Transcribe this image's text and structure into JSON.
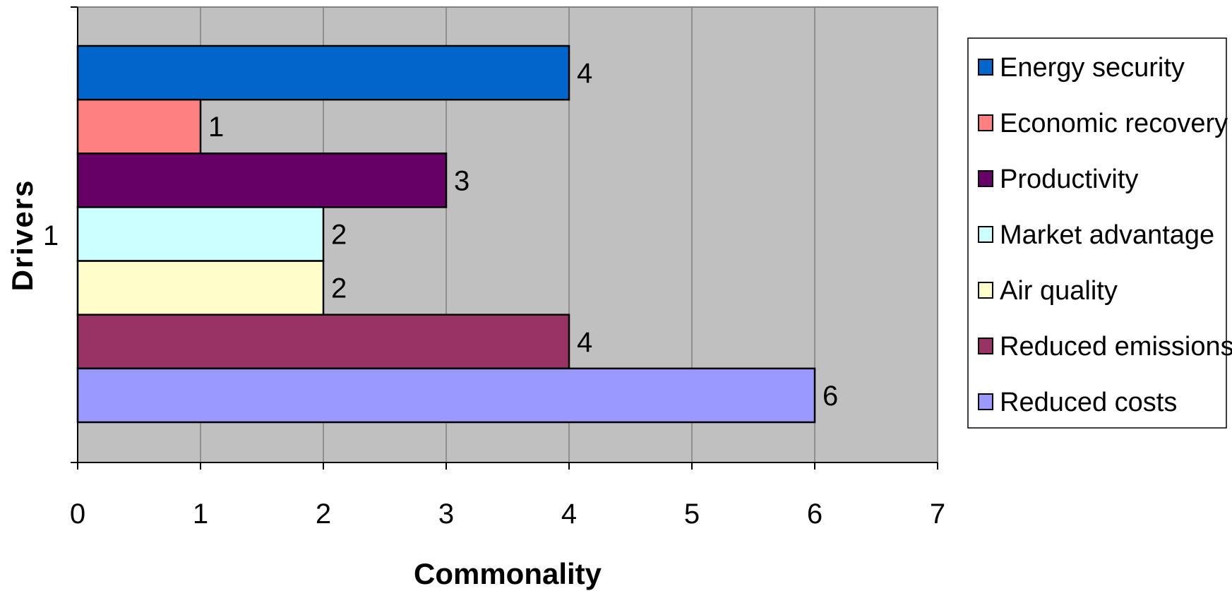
{
  "chart_data": {
    "type": "bar",
    "orientation": "horizontal",
    "categories": [
      "1"
    ],
    "series": [
      {
        "name": "Energy security",
        "values": [
          4
        ],
        "color": "#0066CC"
      },
      {
        "name": "Economic recovery",
        "values": [
          1
        ],
        "color": "#FF8080"
      },
      {
        "name": "Productivity",
        "values": [
          3
        ],
        "color": "#660066"
      },
      {
        "name": "Market advantage",
        "values": [
          2
        ],
        "color": "#CCFFFF"
      },
      {
        "name": "Air quality",
        "values": [
          2
        ],
        "color": "#FFFFCC"
      },
      {
        "name": "Reduced emissions",
        "values": [
          4
        ],
        "color": "#993366"
      },
      {
        "name": "Reduced costs",
        "values": [
          6
        ],
        "color": "#9999FF"
      }
    ],
    "xlabel": "Commonality",
    "ylabel": "Drivers",
    "xlim": [
      0,
      7
    ],
    "xticks": [
      "0",
      "1",
      "2",
      "3",
      "4",
      "5",
      "6",
      "7"
    ],
    "data_labels": true,
    "grid": true,
    "plot_background": "#C0C0C0",
    "legend_position": "right"
  }
}
